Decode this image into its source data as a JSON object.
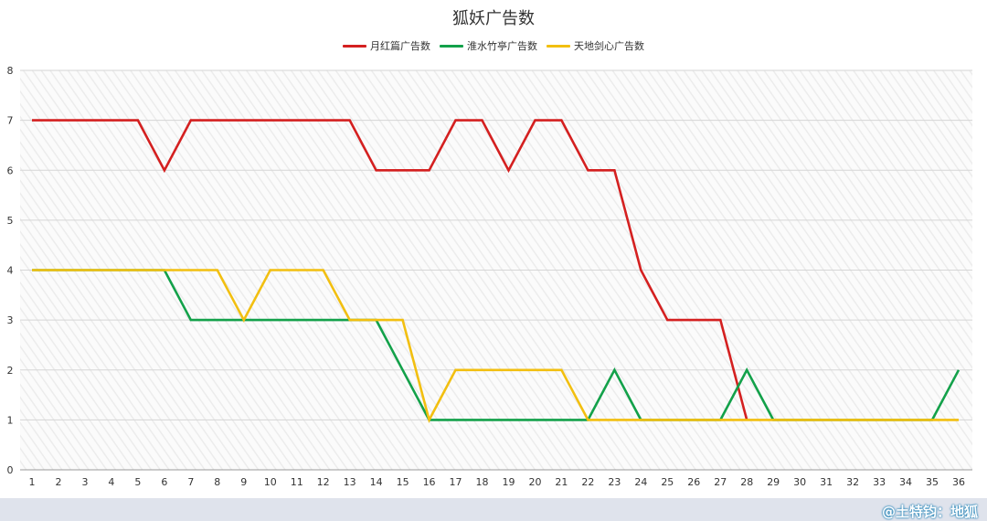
{
  "chart_data": {
    "type": "line",
    "title": "狐妖广告数",
    "xlabel": "",
    "ylabel": "",
    "ylim": [
      0,
      8
    ],
    "yticks": [
      0,
      1,
      2,
      3,
      4,
      5,
      6,
      7,
      8
    ],
    "x": [
      1,
      2,
      3,
      4,
      5,
      6,
      7,
      8,
      9,
      10,
      11,
      12,
      13,
      14,
      15,
      16,
      17,
      18,
      19,
      20,
      21,
      22,
      23,
      24,
      25,
      26,
      27,
      28,
      29,
      30,
      31,
      32,
      33,
      34,
      35,
      36
    ],
    "legend_position": "top-center",
    "grid": true,
    "series": [
      {
        "name": "月红篇广告数",
        "color": "#d42020",
        "values": [
          7,
          7,
          7,
          7,
          7,
          6,
          7,
          7,
          7,
          7,
          7,
          7,
          7,
          6,
          6,
          6,
          7,
          7,
          6,
          7,
          7,
          6,
          6,
          4,
          3,
          3,
          3,
          1,
          null,
          null,
          null,
          null,
          null,
          null,
          null,
          null
        ]
      },
      {
        "name": "淮水竹亭广告数",
        "color": "#13a14a",
        "values": [
          4,
          4,
          4,
          4,
          4,
          4,
          3,
          3,
          3,
          3,
          3,
          3,
          3,
          3,
          2,
          1,
          1,
          1,
          1,
          1,
          1,
          1,
          2,
          1,
          1,
          1,
          1,
          2,
          1,
          1,
          1,
          1,
          1,
          1,
          1,
          2
        ]
      },
      {
        "name": "天地剑心广告数",
        "color": "#f2bf10",
        "values": [
          4,
          4,
          4,
          4,
          4,
          4,
          4,
          4,
          3,
          4,
          4,
          4,
          3,
          3,
          3,
          1,
          2,
          2,
          2,
          2,
          2,
          1,
          1,
          1,
          1,
          1,
          1,
          1,
          1,
          1,
          1,
          1,
          1,
          1,
          1,
          1
        ]
      }
    ]
  },
  "watermark": "@土特钧：地狐"
}
